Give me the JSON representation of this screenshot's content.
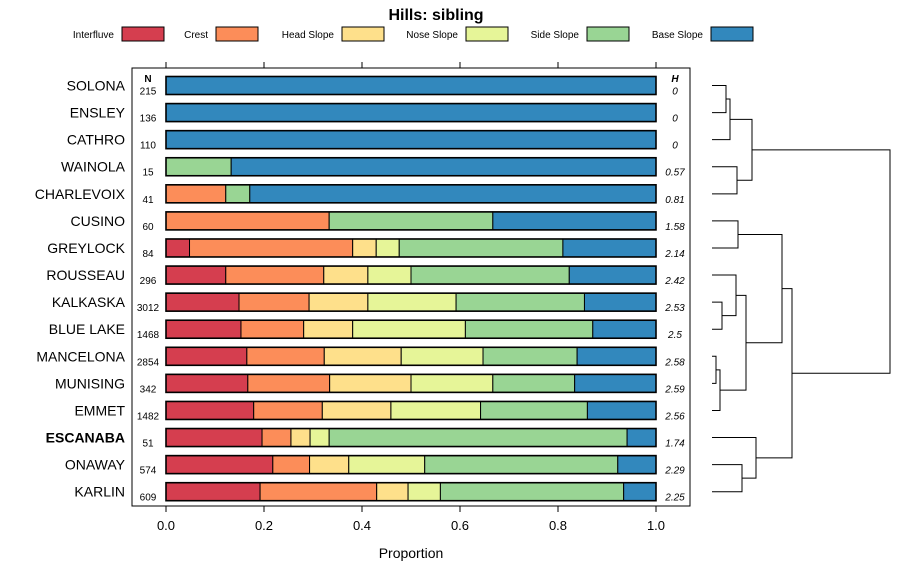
{
  "chart_data": {
    "type": "bar",
    "orientation": "horizontal",
    "stacked": true,
    "title": "Hills: sibling",
    "xlabel": "Proportion",
    "ylabel": "",
    "xlim": [
      0,
      1
    ],
    "xticks": [
      "0.0",
      "0.2",
      "0.4",
      "0.6",
      "0.8",
      "1.0"
    ],
    "n_header": "N",
    "h_header": "H",
    "legend_position": "top",
    "series": [
      {
        "name": "Interfluve",
        "color": "#d53e4f"
      },
      {
        "name": "Crest",
        "color": "#fc8d59"
      },
      {
        "name": "Head Slope",
        "color": "#fee08b"
      },
      {
        "name": "Nose Slope",
        "color": "#e6f598"
      },
      {
        "name": "Side Slope",
        "color": "#99d594"
      },
      {
        "name": "Base Slope",
        "color": "#3288bd"
      }
    ],
    "categories": [
      {
        "name": "SOLONA",
        "n": "215",
        "h": "0",
        "bold": false,
        "values": [
          0,
          0,
          0,
          0,
          0,
          1.0
        ]
      },
      {
        "name": "ENSLEY",
        "n": "136",
        "h": "0",
        "bold": false,
        "values": [
          0,
          0,
          0,
          0,
          0,
          1.0
        ]
      },
      {
        "name": "CATHRO",
        "n": "110",
        "h": "0",
        "bold": false,
        "values": [
          0,
          0,
          0,
          0,
          0,
          1.0
        ]
      },
      {
        "name": "WAINOLA",
        "n": "15",
        "h": "0.57",
        "bold": false,
        "values": [
          0,
          0,
          0,
          0,
          0.133,
          0.867
        ]
      },
      {
        "name": "CHARLEVOIX",
        "n": "41",
        "h": "0.81",
        "bold": false,
        "values": [
          0,
          0.122,
          0,
          0,
          0.049,
          0.829
        ]
      },
      {
        "name": "CUSINO",
        "n": "60",
        "h": "1.58",
        "bold": false,
        "values": [
          0,
          0.333,
          0,
          0,
          0.334,
          0.333
        ]
      },
      {
        "name": "GREYLOCK",
        "n": "84",
        "h": "2.14",
        "bold": false,
        "values": [
          0.048,
          0.333,
          0.048,
          0.047,
          0.334,
          0.19
        ]
      },
      {
        "name": "ROUSSEAU",
        "n": "296",
        "h": "2.42",
        "bold": false,
        "values": [
          0.122,
          0.2,
          0.09,
          0.088,
          0.323,
          0.177
        ]
      },
      {
        "name": "KALKASKA",
        "n": "3012",
        "h": "2.53",
        "bold": false,
        "values": [
          0.149,
          0.143,
          0.12,
          0.18,
          0.262,
          0.146
        ]
      },
      {
        "name": "BLUE LAKE",
        "n": "1468",
        "h": "2.5",
        "bold": false,
        "values": [
          0.153,
          0.128,
          0.1,
          0.23,
          0.26,
          0.129
        ]
      },
      {
        "name": "MANCELONA",
        "n": "2854",
        "h": "2.58",
        "bold": false,
        "values": [
          0.165,
          0.158,
          0.157,
          0.167,
          0.192,
          0.161
        ]
      },
      {
        "name": "MUNISING",
        "n": "342",
        "h": "2.59",
        "bold": false,
        "values": [
          0.167,
          0.167,
          0.166,
          0.167,
          0.167,
          0.166
        ]
      },
      {
        "name": "EMMET",
        "n": "1482",
        "h": "2.56",
        "bold": false,
        "values": [
          0.179,
          0.14,
          0.14,
          0.183,
          0.218,
          0.14
        ]
      },
      {
        "name": "ESCANABA",
        "n": "51",
        "h": "1.74",
        "bold": true,
        "values": [
          0.196,
          0.059,
          0.039,
          0.039,
          0.608,
          0.059
        ]
      },
      {
        "name": "ONAWAY",
        "n": "574",
        "h": "2.29",
        "bold": false,
        "values": [
          0.218,
          0.075,
          0.08,
          0.155,
          0.394,
          0.078
        ]
      },
      {
        "name": "KARLIN",
        "n": "609",
        "h": "2.25",
        "bold": false,
        "values": [
          0.192,
          0.238,
          0.064,
          0.066,
          0.374,
          0.066
        ]
      }
    ]
  }
}
